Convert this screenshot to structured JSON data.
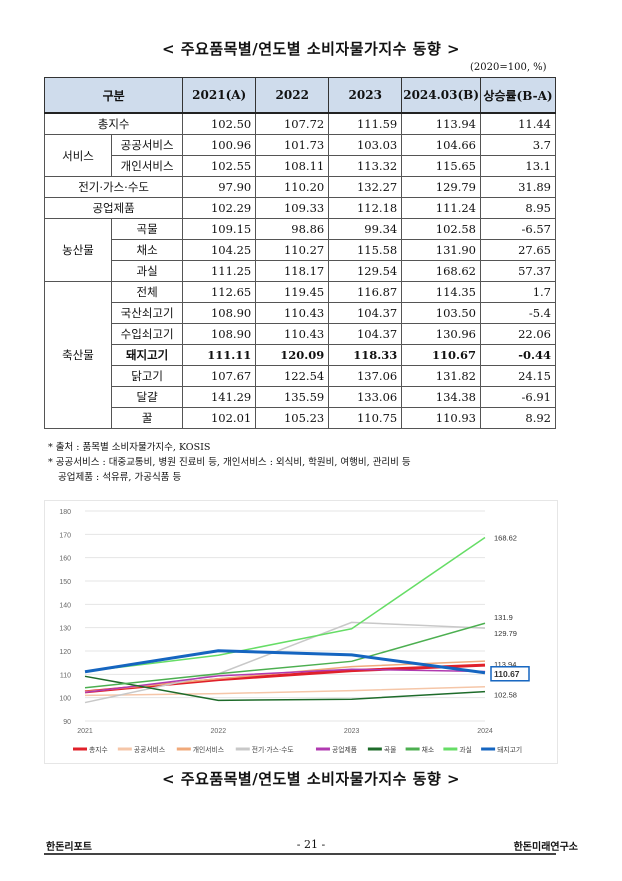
{
  "title_top": "< 주요품목별/연도별 소비자물가지수 동향 >",
  "unit": "(2020=100, %)",
  "table": {
    "headers": [
      "구분",
      "2021(A)",
      "2022",
      "2023",
      "2024.03(B)",
      "상승률(B-A)"
    ],
    "rows": [
      {
        "group": "총지수",
        "sub": "",
        "v": [
          "102.50",
          "107.72",
          "111.59",
          "113.94",
          "11.44"
        ]
      },
      {
        "group": "서비스",
        "sub": "공공서비스",
        "v": [
          "100.96",
          "101.73",
          "103.03",
          "104.66",
          "3.7"
        ]
      },
      {
        "group": "서비스",
        "sub": "개인서비스",
        "v": [
          "102.55",
          "108.11",
          "113.32",
          "115.65",
          "13.1"
        ]
      },
      {
        "group": "전기·가스·수도",
        "sub": "",
        "v": [
          "97.90",
          "110.20",
          "132.27",
          "129.79",
          "31.89"
        ]
      },
      {
        "group": "공업제품",
        "sub": "",
        "v": [
          "102.29",
          "109.33",
          "112.18",
          "111.24",
          "8.95"
        ]
      },
      {
        "group": "농산물",
        "sub": "곡물",
        "v": [
          "109.15",
          "98.86",
          "99.34",
          "102.58",
          "-6.57"
        ]
      },
      {
        "group": "농산물",
        "sub": "채소",
        "v": [
          "104.25",
          "110.27",
          "115.58",
          "131.90",
          "27.65"
        ]
      },
      {
        "group": "농산물",
        "sub": "과실",
        "v": [
          "111.25",
          "118.17",
          "129.54",
          "168.62",
          "57.37"
        ]
      },
      {
        "group": "축산물",
        "sub": "전체",
        "v": [
          "112.65",
          "119.45",
          "116.87",
          "114.35",
          "1.7"
        ]
      },
      {
        "group": "축산물",
        "sub": "국산쇠고기",
        "v": [
          "108.90",
          "110.43",
          "104.37",
          "103.50",
          "-5.4"
        ]
      },
      {
        "group": "축산물",
        "sub": "수입쇠고기",
        "v": [
          "108.90",
          "110.43",
          "104.37",
          "130.96",
          "22.06"
        ]
      },
      {
        "group": "축산물",
        "sub": "돼지고기",
        "v": [
          "111.11",
          "120.09",
          "118.33",
          "110.67",
          "-0.44"
        ],
        "bold": true
      },
      {
        "group": "축산물",
        "sub": "닭고기",
        "v": [
          "107.67",
          "122.54",
          "137.06",
          "131.82",
          "24.15"
        ]
      },
      {
        "group": "축산물",
        "sub": "달걀",
        "v": [
          "141.29",
          "135.59",
          "133.06",
          "134.38",
          "-6.91"
        ]
      },
      {
        "group": "축산물",
        "sub": "꿀",
        "v": [
          "102.01",
          "105.23",
          "110.75",
          "110.93",
          "8.92"
        ]
      }
    ]
  },
  "notes": [
    "* 출처 : 품목별 소비자물가지수, KOSIS",
    "* 공공서비스 : 대중교통비, 병원 진료비 등, 개인서비스 : 외식비, 학원비, 여행비, 관리비 등",
    "  공업제품 : 석유류, 가공식품 등"
  ],
  "chart_data": {
    "type": "line",
    "x": [
      "2021",
      "2022",
      "2023",
      "2024"
    ],
    "ylim": [
      90,
      180
    ],
    "yticks": [
      "90",
      "100",
      "110",
      "120",
      "130",
      "140",
      "150",
      "160",
      "170",
      "180"
    ],
    "grid": true,
    "legend_position": "bottom",
    "series": [
      {
        "name": "총지수",
        "color": "#e0202a",
        "width": 3,
        "values": [
          102.5,
          107.72,
          111.59,
          113.94
        ]
      },
      {
        "name": "공공서비스",
        "color": "#f5c6a8",
        "width": 1.5,
        "values": [
          100.96,
          101.73,
          103.03,
          104.66
        ]
      },
      {
        "name": "개인서비스",
        "color": "#f0a97a",
        "width": 1.5,
        "values": [
          102.55,
          108.11,
          113.32,
          115.65
        ]
      },
      {
        "name": "전기·가스·수도",
        "color": "#c8c8c8",
        "width": 1.5,
        "values": [
          97.9,
          110.2,
          132.27,
          129.79
        ]
      },
      {
        "name": "공업제품",
        "color": "#b03ab0",
        "width": 1.5,
        "values": [
          102.29,
          109.33,
          112.18,
          111.24
        ]
      },
      {
        "name": "곡물",
        "color": "#1e6b2a",
        "width": 1.5,
        "values": [
          109.15,
          98.86,
          99.34,
          102.58
        ]
      },
      {
        "name": "채소",
        "color": "#4caf50",
        "width": 1.5,
        "values": [
          104.25,
          110.27,
          115.58,
          131.9
        ]
      },
      {
        "name": "과실",
        "color": "#66dd66",
        "width": 1.5,
        "values": [
          111.25,
          118.17,
          129.54,
          168.62
        ]
      },
      {
        "name": "돼지고기",
        "color": "#1565c0",
        "width": 3,
        "values": [
          111.11,
          120.09,
          118.33,
          110.67
        ]
      }
    ],
    "annotations": [
      "168.62",
      "131.9",
      "129.79",
      "113.94",
      "110.67",
      "102.58"
    ]
  },
  "title_bottom": "< 주요품목별/연도별 소비자물가지수 동향 >",
  "footer": {
    "left": "한돈리포트",
    "page": "- 21 -",
    "right": "한돈미래연구소"
  }
}
